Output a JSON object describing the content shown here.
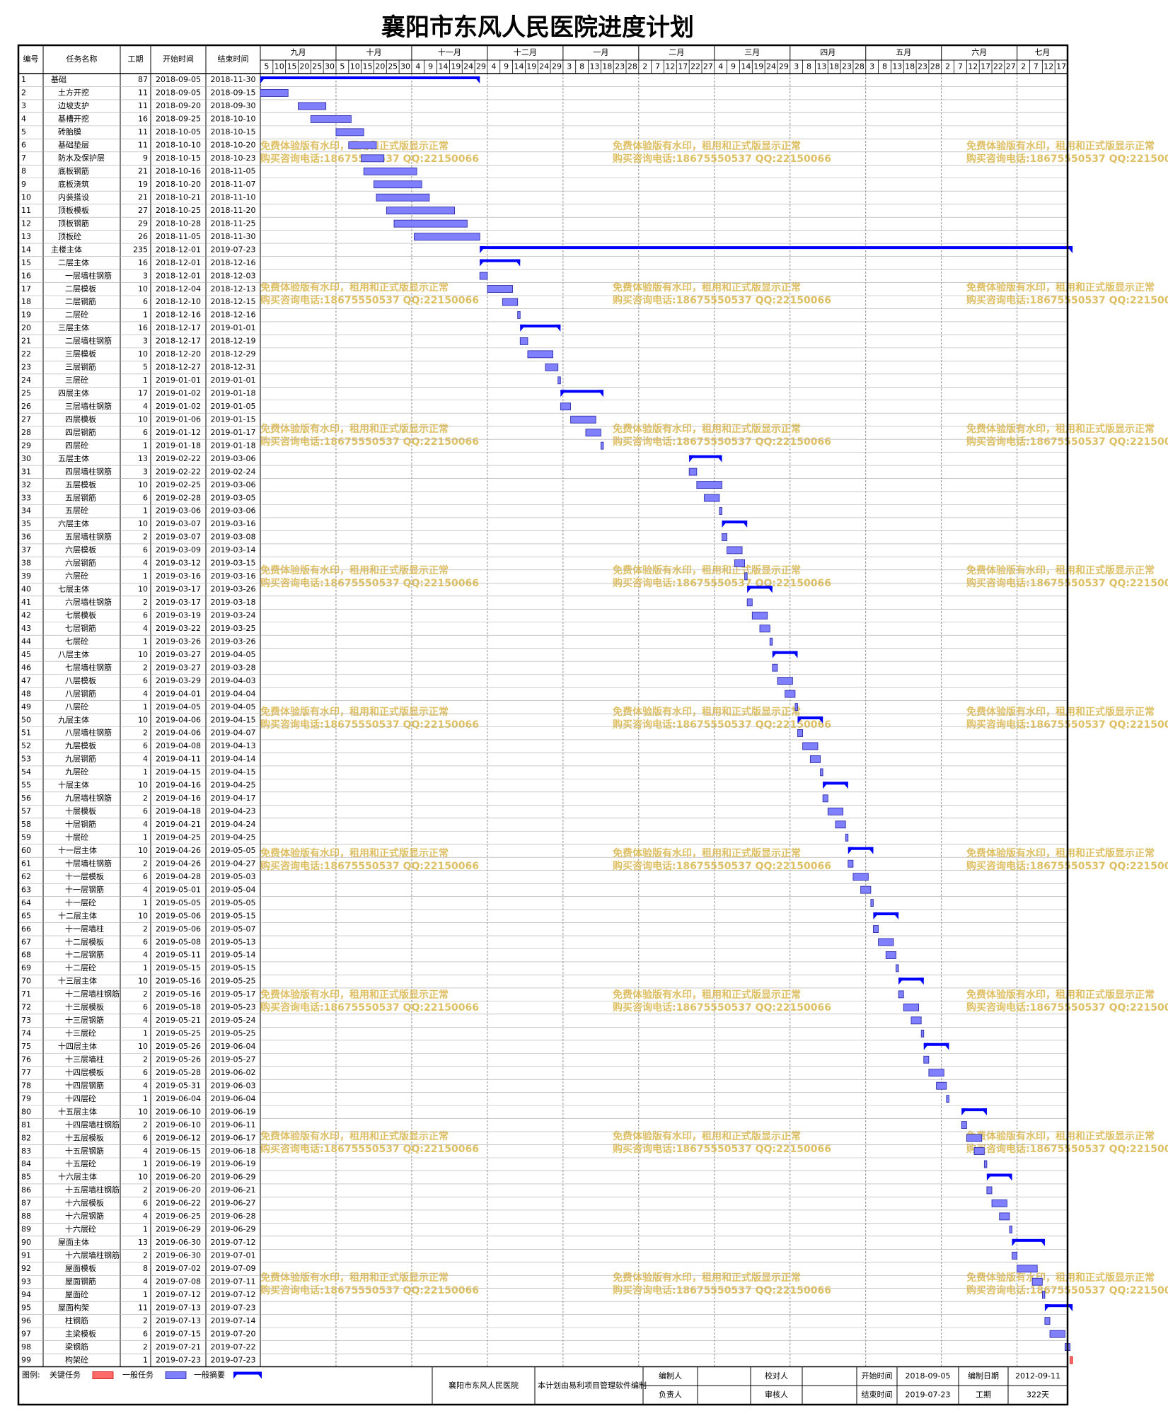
{
  "title": "襄阳市东风人民医院进度计划",
  "columns": [
    "编号",
    "任务名称",
    "工期",
    "开始时间",
    "结束时间"
  ],
  "timeline": {
    "months": [
      {
        "label": "九月",
        "days": [
          5,
          10,
          15,
          20,
          25,
          30
        ]
      },
      {
        "label": "十月",
        "days": [
          5,
          10,
          15,
          20,
          25,
          30
        ]
      },
      {
        "label": "十一月",
        "days": [
          4,
          9,
          14,
          19,
          24,
          29
        ]
      },
      {
        "label": "十二月",
        "days": [
          4,
          9,
          14,
          19,
          24,
          29
        ]
      },
      {
        "label": "一月",
        "days": [
          3,
          8,
          13,
          18,
          23,
          28
        ]
      },
      {
        "label": "二月",
        "days": [
          2,
          7,
          12,
          17,
          22,
          27
        ]
      },
      {
        "label": "三月",
        "days": [
          4,
          9,
          14,
          19,
          24,
          29
        ]
      },
      {
        "label": "四月",
        "days": [
          3,
          8,
          13,
          18,
          23,
          28
        ]
      },
      {
        "label": "五月",
        "days": [
          3,
          8,
          13,
          18,
          23,
          28
        ]
      },
      {
        "label": "六月",
        "days": [
          2,
          7,
          12,
          17,
          22,
          27
        ]
      },
      {
        "label": "七月",
        "days": [
          2,
          7,
          12,
          17
        ]
      }
    ]
  },
  "tasks": [
    {
      "id": 1,
      "name": "基础",
      "duration": 87,
      "start": "2018-09-05",
      "end": "2018-11-30",
      "type": "summary",
      "level": 0
    },
    {
      "id": 2,
      "name": "土方开挖",
      "duration": 11,
      "start": "2018-09-05",
      "end": "2018-09-15",
      "type": "task",
      "level": 1
    },
    {
      "id": 3,
      "name": "边坡支护",
      "duration": 11,
      "start": "2018-09-20",
      "end": "2018-09-30",
      "type": "task",
      "level": 1
    },
    {
      "id": 4,
      "name": "基槽开挖",
      "duration": 16,
      "start": "2018-09-25",
      "end": "2018-10-10",
      "type": "task",
      "level": 1
    },
    {
      "id": 5,
      "name": "砖胎膜",
      "duration": 11,
      "start": "2018-10-05",
      "end": "2018-10-15",
      "type": "task",
      "level": 1
    },
    {
      "id": 6,
      "name": "基础垫层",
      "duration": 11,
      "start": "2018-10-10",
      "end": "2018-10-20",
      "type": "task",
      "level": 1
    },
    {
      "id": 7,
      "name": "防水及保护层",
      "duration": 9,
      "start": "2018-10-15",
      "end": "2018-10-23",
      "type": "task",
      "level": 1
    },
    {
      "id": 8,
      "name": "底板钢筋",
      "duration": 21,
      "start": "2018-10-16",
      "end": "2018-11-05",
      "type": "task",
      "level": 1
    },
    {
      "id": 9,
      "name": "底板浇筑",
      "duration": 19,
      "start": "2018-10-20",
      "end": "2018-11-07",
      "type": "task",
      "level": 1
    },
    {
      "id": 10,
      "name": "内装搭设",
      "duration": 21,
      "start": "2018-10-21",
      "end": "2018-11-10",
      "type": "task",
      "level": 1
    },
    {
      "id": 11,
      "name": "顶板模板",
      "duration": 27,
      "start": "2018-10-25",
      "end": "2018-11-20",
      "type": "task",
      "level": 1
    },
    {
      "id": 12,
      "name": "顶板钢筋",
      "duration": 29,
      "start": "2018-10-28",
      "end": "2018-11-25",
      "type": "task",
      "level": 1
    },
    {
      "id": 13,
      "name": "顶板砼",
      "duration": 26,
      "start": "2018-11-05",
      "end": "2018-11-30",
      "type": "task",
      "level": 1
    },
    {
      "id": 14,
      "name": "主楼主体",
      "duration": 235,
      "start": "2018-12-01",
      "end": "2019-07-23",
      "type": "summary",
      "level": 0
    },
    {
      "id": 15,
      "name": "二层主体",
      "duration": 16,
      "start": "2018-12-01",
      "end": "2018-12-16",
      "type": "summary",
      "level": 1
    },
    {
      "id": 16,
      "name": "一层墙柱钢筋",
      "duration": 3,
      "start": "2018-12-01",
      "end": "2018-12-03",
      "type": "task",
      "level": 2
    },
    {
      "id": 17,
      "name": "二层模板",
      "duration": 10,
      "start": "2018-12-04",
      "end": "2018-12-13",
      "type": "task",
      "level": 2
    },
    {
      "id": 18,
      "name": "二层钢筋",
      "duration": 6,
      "start": "2018-12-10",
      "end": "2018-12-15",
      "type": "task",
      "level": 2
    },
    {
      "id": 19,
      "name": "二层砼",
      "duration": 1,
      "start": "2018-12-16",
      "end": "2018-12-16",
      "type": "task",
      "level": 2
    },
    {
      "id": 20,
      "name": "三层主体",
      "duration": 16,
      "start": "2018-12-17",
      "end": "2019-01-01",
      "type": "summary",
      "level": 1
    },
    {
      "id": 21,
      "name": "二层墙柱钢筋",
      "duration": 3,
      "start": "2018-12-17",
      "end": "2018-12-19",
      "type": "task",
      "level": 2
    },
    {
      "id": 22,
      "name": "三层模板",
      "duration": 10,
      "start": "2018-12-20",
      "end": "2018-12-29",
      "type": "task",
      "level": 2
    },
    {
      "id": 23,
      "name": "三层钢筋",
      "duration": 5,
      "start": "2018-12-27",
      "end": "2018-12-31",
      "type": "task",
      "level": 2
    },
    {
      "id": 24,
      "name": "三层砼",
      "duration": 1,
      "start": "2019-01-01",
      "end": "2019-01-01",
      "type": "task",
      "level": 2
    },
    {
      "id": 25,
      "name": "四层主体",
      "duration": 17,
      "start": "2019-01-02",
      "end": "2019-01-18",
      "type": "summary",
      "level": 1
    },
    {
      "id": 26,
      "name": "三层墙柱钢筋",
      "duration": 4,
      "start": "2019-01-02",
      "end": "2019-01-05",
      "type": "task",
      "level": 2
    },
    {
      "id": 27,
      "name": "四层模板",
      "duration": 10,
      "start": "2019-01-06",
      "end": "2019-01-15",
      "type": "task",
      "level": 2
    },
    {
      "id": 28,
      "name": "四层钢筋",
      "duration": 6,
      "start": "2019-01-12",
      "end": "2019-01-17",
      "type": "task",
      "level": 2
    },
    {
      "id": 29,
      "name": "四层砼",
      "duration": 1,
      "start": "2019-01-18",
      "end": "2019-01-18",
      "type": "task",
      "level": 2
    },
    {
      "id": 30,
      "name": "五层主体",
      "duration": 13,
      "start": "2019-02-22",
      "end": "2019-03-06",
      "type": "summary",
      "level": 1
    },
    {
      "id": 31,
      "name": "四层墙柱钢筋",
      "duration": 3,
      "start": "2019-02-22",
      "end": "2019-02-24",
      "type": "task",
      "level": 2
    },
    {
      "id": 32,
      "name": "五层模板",
      "duration": 10,
      "start": "2019-02-25",
      "end": "2019-03-06",
      "type": "task",
      "level": 2
    },
    {
      "id": 33,
      "name": "五层钢筋",
      "duration": 6,
      "start": "2019-02-28",
      "end": "2019-03-05",
      "type": "task",
      "level": 2
    },
    {
      "id": 34,
      "name": "五层砼",
      "duration": 1,
      "start": "2019-03-06",
      "end": "2019-03-06",
      "type": "task",
      "level": 2
    },
    {
      "id": 35,
      "name": "六层主体",
      "duration": 10,
      "start": "2019-03-07",
      "end": "2019-03-16",
      "type": "summary",
      "level": 1
    },
    {
      "id": 36,
      "name": "五层墙柱钢筋",
      "duration": 2,
      "start": "2019-03-07",
      "end": "2019-03-08",
      "type": "task",
      "level": 2
    },
    {
      "id": 37,
      "name": "六层模板",
      "duration": 6,
      "start": "2019-03-09",
      "end": "2019-03-14",
      "type": "task",
      "level": 2
    },
    {
      "id": 38,
      "name": "六层钢筋",
      "duration": 4,
      "start": "2019-03-12",
      "end": "2019-03-15",
      "type": "task",
      "level": 2
    },
    {
      "id": 39,
      "name": "六层砼",
      "duration": 1,
      "start": "2019-03-16",
      "end": "2019-03-16",
      "type": "task",
      "level": 2
    },
    {
      "id": 40,
      "name": "七层主体",
      "duration": 10,
      "start": "2019-03-17",
      "end": "2019-03-26",
      "type": "summary",
      "level": 1
    },
    {
      "id": 41,
      "name": "六层墙柱钢筋",
      "duration": 2,
      "start": "2019-03-17",
      "end": "2019-03-18",
      "type": "task",
      "level": 2
    },
    {
      "id": 42,
      "name": "七层模板",
      "duration": 6,
      "start": "2019-03-19",
      "end": "2019-03-24",
      "type": "task",
      "level": 2
    },
    {
      "id": 43,
      "name": "七层钢筋",
      "duration": 4,
      "start": "2019-03-22",
      "end": "2019-03-25",
      "type": "task",
      "level": 2
    },
    {
      "id": 44,
      "name": "七层砼",
      "duration": 1,
      "start": "2019-03-26",
      "end": "2019-03-26",
      "type": "task",
      "level": 2
    },
    {
      "id": 45,
      "name": "八层主体",
      "duration": 10,
      "start": "2019-03-27",
      "end": "2019-04-05",
      "type": "summary",
      "level": 1
    },
    {
      "id": 46,
      "name": "七层墙柱钢筋",
      "duration": 2,
      "start": "2019-03-27",
      "end": "2019-03-28",
      "type": "task",
      "level": 2
    },
    {
      "id": 47,
      "name": "八层模板",
      "duration": 6,
      "start": "2019-03-29",
      "end": "2019-04-03",
      "type": "task",
      "level": 2
    },
    {
      "id": 48,
      "name": "八层钢筋",
      "duration": 4,
      "start": "2019-04-01",
      "end": "2019-04-04",
      "type": "task",
      "level": 2
    },
    {
      "id": 49,
      "name": "八层砼",
      "duration": 1,
      "start": "2019-04-05",
      "end": "2019-04-05",
      "type": "task",
      "level": 2
    },
    {
      "id": 50,
      "name": "九层主体",
      "duration": 10,
      "start": "2019-04-06",
      "end": "2019-04-15",
      "type": "summary",
      "level": 1
    },
    {
      "id": 51,
      "name": "八层墙柱钢筋",
      "duration": 2,
      "start": "2019-04-06",
      "end": "2019-04-07",
      "type": "task",
      "level": 2
    },
    {
      "id": 52,
      "name": "九层模板",
      "duration": 6,
      "start": "2019-04-08",
      "end": "2019-04-13",
      "type": "task",
      "level": 2
    },
    {
      "id": 53,
      "name": "九层钢筋",
      "duration": 4,
      "start": "2019-04-11",
      "end": "2019-04-14",
      "type": "task",
      "level": 2
    },
    {
      "id": 54,
      "name": "九层砼",
      "duration": 1,
      "start": "2019-04-15",
      "end": "2019-04-15",
      "type": "task",
      "level": 2
    },
    {
      "id": 55,
      "name": "十层主体",
      "duration": 10,
      "start": "2019-04-16",
      "end": "2019-04-25",
      "type": "summary",
      "level": 1
    },
    {
      "id": 56,
      "name": "九层墙柱钢筋",
      "duration": 2,
      "start": "2019-04-16",
      "end": "2019-04-17",
      "type": "task",
      "level": 2
    },
    {
      "id": 57,
      "name": "十层模板",
      "duration": 6,
      "start": "2019-04-18",
      "end": "2019-04-23",
      "type": "task",
      "level": 2
    },
    {
      "id": 58,
      "name": "十层钢筋",
      "duration": 4,
      "start": "2019-04-21",
      "end": "2019-04-24",
      "type": "task",
      "level": 2
    },
    {
      "id": 59,
      "name": "十层砼",
      "duration": 1,
      "start": "2019-04-25",
      "end": "2019-04-25",
      "type": "task",
      "level": 2
    },
    {
      "id": 60,
      "name": "十一层主体",
      "duration": 10,
      "start": "2019-04-26",
      "end": "2019-05-05",
      "type": "summary",
      "level": 1
    },
    {
      "id": 61,
      "name": "十层墙柱钢筋",
      "duration": 2,
      "start": "2019-04-26",
      "end": "2019-04-27",
      "type": "task",
      "level": 2
    },
    {
      "id": 62,
      "name": "十一层模板",
      "duration": 6,
      "start": "2019-04-28",
      "end": "2019-05-03",
      "type": "task",
      "level": 2
    },
    {
      "id": 63,
      "name": "十一层钢筋",
      "duration": 4,
      "start": "2019-05-01",
      "end": "2019-05-04",
      "type": "task",
      "level": 2
    },
    {
      "id": 64,
      "name": "十一层砼",
      "duration": 1,
      "start": "2019-05-05",
      "end": "2019-05-05",
      "type": "task",
      "level": 2
    },
    {
      "id": 65,
      "name": "十二层主体",
      "duration": 10,
      "start": "2019-05-06",
      "end": "2019-05-15",
      "type": "summary",
      "level": 1
    },
    {
      "id": 66,
      "name": "十一层墙柱",
      "duration": 2,
      "start": "2019-05-06",
      "end": "2019-05-07",
      "type": "task",
      "level": 2
    },
    {
      "id": 67,
      "name": "十二层模板",
      "duration": 6,
      "start": "2019-05-08",
      "end": "2019-05-13",
      "type": "task",
      "level": 2
    },
    {
      "id": 68,
      "name": "十二层钢筋",
      "duration": 4,
      "start": "2019-05-11",
      "end": "2019-05-14",
      "type": "task",
      "level": 2
    },
    {
      "id": 69,
      "name": "十二层砼",
      "duration": 1,
      "start": "2019-05-15",
      "end": "2019-05-15",
      "type": "task",
      "level": 2
    },
    {
      "id": 70,
      "name": "十三层主体",
      "duration": 10,
      "start": "2019-05-16",
      "end": "2019-05-25",
      "type": "summary",
      "level": 1
    },
    {
      "id": 71,
      "name": "十二层墙柱钢筋",
      "duration": 2,
      "start": "2019-05-16",
      "end": "2019-05-17",
      "type": "task",
      "level": 2
    },
    {
      "id": 72,
      "name": "十三层模板",
      "duration": 6,
      "start": "2019-05-18",
      "end": "2019-05-23",
      "type": "task",
      "level": 2
    },
    {
      "id": 73,
      "name": "十三层钢筋",
      "duration": 4,
      "start": "2019-05-21",
      "end": "2019-05-24",
      "type": "task",
      "level": 2
    },
    {
      "id": 74,
      "name": "十三层砼",
      "duration": 1,
      "start": "2019-05-25",
      "end": "2019-05-25",
      "type": "task",
      "level": 2
    },
    {
      "id": 75,
      "name": "十四层主体",
      "duration": 10,
      "start": "2019-05-26",
      "end": "2019-06-04",
      "type": "summary",
      "level": 1
    },
    {
      "id": 76,
      "name": "十三层墙柱",
      "duration": 2,
      "start": "2019-05-26",
      "end": "2019-05-27",
      "type": "task",
      "level": 2
    },
    {
      "id": 77,
      "name": "十四层模板",
      "duration": 6,
      "start": "2019-05-28",
      "end": "2019-06-02",
      "type": "task",
      "level": 2
    },
    {
      "id": 78,
      "name": "十四层钢筋",
      "duration": 4,
      "start": "2019-05-31",
      "end": "2019-06-03",
      "type": "task",
      "level": 2
    },
    {
      "id": 79,
      "name": "十四层砼",
      "duration": 1,
      "start": "2019-06-04",
      "end": "2019-06-04",
      "type": "task",
      "level": 2
    },
    {
      "id": 80,
      "name": "十五层主体",
      "duration": 10,
      "start": "2019-06-10",
      "end": "2019-06-19",
      "type": "summary",
      "level": 1
    },
    {
      "id": 81,
      "name": "十四层墙柱钢筋",
      "duration": 2,
      "start": "2019-06-10",
      "end": "2019-06-11",
      "type": "task",
      "level": 2
    },
    {
      "id": 82,
      "name": "十五层模板",
      "duration": 6,
      "start": "2019-06-12",
      "end": "2019-06-17",
      "type": "task",
      "level": 2
    },
    {
      "id": 83,
      "name": "十五层钢筋",
      "duration": 4,
      "start": "2019-06-15",
      "end": "2019-06-18",
      "type": "task",
      "level": 2
    },
    {
      "id": 84,
      "name": "十五层砼",
      "duration": 1,
      "start": "2019-06-19",
      "end": "2019-06-19",
      "type": "task",
      "level": 2
    },
    {
      "id": 85,
      "name": "十六层主体",
      "duration": 10,
      "start": "2019-06-20",
      "end": "2019-06-29",
      "type": "summary",
      "level": 1
    },
    {
      "id": 86,
      "name": "十五层墙柱钢筋",
      "duration": 2,
      "start": "2019-06-20",
      "end": "2019-06-21",
      "type": "task",
      "level": 2
    },
    {
      "id": 87,
      "name": "十六层模板",
      "duration": 6,
      "start": "2019-06-22",
      "end": "2019-06-27",
      "type": "task",
      "level": 2
    },
    {
      "id": 88,
      "name": "十六层钢筋",
      "duration": 4,
      "start": "2019-06-25",
      "end": "2019-06-28",
      "type": "task",
      "level": 2
    },
    {
      "id": 89,
      "name": "十六层砼",
      "duration": 1,
      "start": "2019-06-29",
      "end": "2019-06-29",
      "type": "task",
      "level": 2
    },
    {
      "id": 90,
      "name": "屋面主体",
      "duration": 13,
      "start": "2019-06-30",
      "end": "2019-07-12",
      "type": "summary",
      "level": 1
    },
    {
      "id": 91,
      "name": "十六层墙柱钢筋",
      "duration": 2,
      "start": "2019-06-30",
      "end": "2019-07-01",
      "type": "task",
      "level": 2
    },
    {
      "id": 92,
      "name": "屋面模板",
      "duration": 8,
      "start": "2019-07-02",
      "end": "2019-07-09",
      "type": "task",
      "level": 2
    },
    {
      "id": 93,
      "name": "屋面钢筋",
      "duration": 4,
      "start": "2019-07-08",
      "end": "2019-07-11",
      "type": "task",
      "level": 2
    },
    {
      "id": 94,
      "name": "屋面砼",
      "duration": 1,
      "start": "2019-07-12",
      "end": "2019-07-12",
      "type": "task",
      "level": 2
    },
    {
      "id": 95,
      "name": "屋面构架",
      "duration": 11,
      "start": "2019-07-13",
      "end": "2019-07-23",
      "type": "summary",
      "level": 1
    },
    {
      "id": 96,
      "name": "柱钢筋",
      "duration": 2,
      "start": "2019-07-13",
      "end": "2019-07-14",
      "type": "task",
      "level": 2
    },
    {
      "id": 97,
      "name": "主梁模板",
      "duration": 6,
      "start": "2019-07-15",
      "end": "2019-07-20",
      "type": "task",
      "level": 2
    },
    {
      "id": 98,
      "name": "梁钢筋",
      "duration": 2,
      "start": "2019-07-21",
      "end": "2019-07-22",
      "type": "task",
      "level": 2
    },
    {
      "id": 99,
      "name": "构架砼",
      "duration": 1,
      "start": "2019-07-23",
      "end": "2019-07-23",
      "type": "critical",
      "level": 2
    }
  ],
  "legend": {
    "label": "图例:",
    "items": [
      {
        "name": "关键任务",
        "type": "critical"
      },
      {
        "name": "一般任务",
        "type": "task"
      },
      {
        "name": "一般摘要",
        "type": "summary"
      }
    ]
  },
  "footer": {
    "company": "襄阳市东风人民医院",
    "software": "本计划由易利项目管理软件编制",
    "editor_label": "编制人",
    "manager_label": "负责人",
    "checker_label": "校对人",
    "reviewer_label": "审核人",
    "start_label": "开始时间",
    "start": "2018-09-05",
    "end_label": "结束时间",
    "end": "2019-07-23",
    "date_label": "编制日期",
    "date": "2012-09-11",
    "duration_label": "工期",
    "duration": "322天"
  },
  "watermark": [
    "免费体验版有水印，租用和正式版显示正常",
    "购买咨询电话:18675550537 QQ:22150066"
  ]
}
